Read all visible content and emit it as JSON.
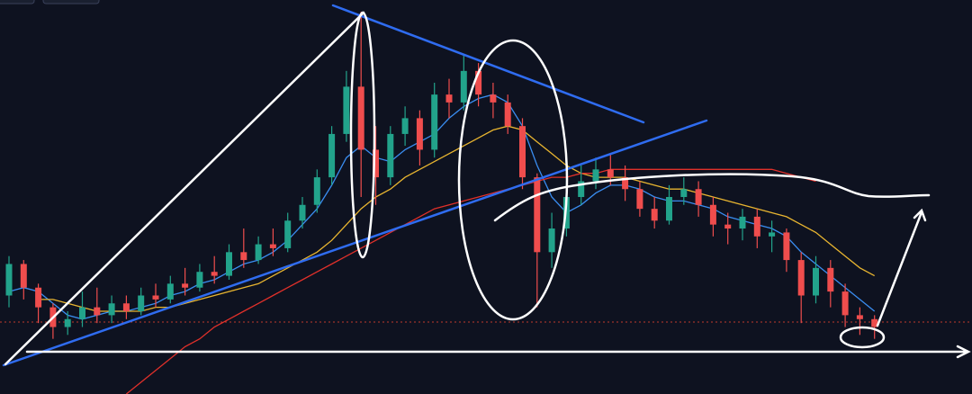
{
  "chart_data": {
    "type": "candlestick",
    "up_color": "#22a38b",
    "down_color": "#ef4d4d",
    "open": [
      25,
      33,
      27,
      22,
      17,
      19,
      22,
      20,
      23,
      21,
      25,
      24,
      28,
      27,
      31,
      30,
      36,
      34,
      38,
      37,
      44,
      48,
      55,
      66,
      78,
      62,
      55,
      66,
      70,
      62,
      76,
      74,
      82,
      76,
      74,
      68,
      55,
      36,
      42,
      50,
      54,
      57,
      55,
      52,
      47,
      44,
      50,
      52,
      48,
      43,
      42,
      45,
      40,
      41,
      34,
      25,
      32,
      26,
      20,
      19
    ],
    "high": [
      35,
      34,
      28,
      23,
      21,
      26,
      27,
      25,
      25,
      27,
      28,
      30,
      32,
      33,
      35,
      38,
      42,
      40,
      42,
      46,
      50,
      57,
      68,
      82,
      97,
      68,
      68,
      73,
      72,
      79,
      80,
      86,
      84,
      79,
      76,
      70,
      56,
      46,
      55,
      58,
      60,
      61,
      58,
      54,
      50,
      53,
      55,
      54,
      50,
      46,
      47,
      47,
      44,
      42,
      36,
      35,
      34,
      28,
      22,
      20
    ],
    "low": [
      22,
      24,
      18,
      14,
      15,
      17,
      18,
      18,
      19,
      20,
      22,
      23,
      25,
      26,
      28,
      29,
      32,
      33,
      35,
      36,
      42,
      46,
      53,
      64,
      50,
      48,
      53,
      63,
      58,
      60,
      70,
      72,
      73,
      70,
      66,
      52,
      22,
      32,
      40,
      48,
      52,
      53,
      49,
      45,
      42,
      43,
      48,
      45,
      40,
      38,
      39,
      37,
      36,
      31,
      18,
      23,
      22,
      17,
      15,
      14
    ],
    "close": [
      33,
      27,
      22,
      17,
      19,
      22,
      20,
      23,
      21,
      25,
      24,
      28,
      27,
      31,
      30,
      36,
      34,
      38,
      37,
      44,
      48,
      55,
      66,
      78,
      62,
      55,
      66,
      70,
      62,
      76,
      74,
      82,
      76,
      74,
      68,
      55,
      36,
      42,
      50,
      54,
      57,
      55,
      52,
      47,
      44,
      50,
      52,
      48,
      43,
      42,
      45,
      40,
      41,
      34,
      25,
      32,
      26,
      20,
      19,
      17
    ],
    "series": [
      {
        "color": "#3a8df0",
        "values": [
          26,
          27,
          26,
          23,
          20,
          19,
          20,
          21,
          21,
          22,
          23,
          25,
          26,
          28,
          29,
          31,
          33,
          34,
          36,
          39,
          43,
          47,
          53,
          60,
          63,
          60,
          59,
          62,
          64,
          66,
          70,
          73,
          75,
          76,
          74,
          68,
          58,
          50,
          46,
          48,
          51,
          53,
          53,
          52,
          50,
          49,
          49,
          48,
          47,
          45,
          44,
          43,
          42,
          40,
          36,
          33,
          30,
          27,
          24,
          21
        ]
      },
      {
        "color": "#e8b530",
        "values": [
          null,
          null,
          24,
          24,
          23,
          22,
          21,
          21,
          21,
          21,
          22,
          22,
          23,
          24,
          25,
          26,
          27,
          28,
          30,
          32,
          34,
          36,
          39,
          43,
          47,
          50,
          52,
          55,
          57,
          59,
          61,
          63,
          65,
          67,
          68,
          67,
          64,
          61,
          58,
          56,
          55,
          55,
          55,
          54,
          53,
          52,
          52,
          51,
          50,
          49,
          48,
          47,
          46,
          45,
          43,
          41,
          38,
          35,
          32,
          30
        ]
      },
      {
        "color": "#e0302a",
        "values": [
          null,
          null,
          null,
          null,
          null,
          null,
          null,
          null,
          0,
          3,
          6,
          9,
          12,
          14,
          17,
          19,
          21,
          23,
          25,
          27,
          29,
          31,
          33,
          35,
          37,
          39,
          41,
          43,
          45,
          47,
          48,
          49,
          50,
          51,
          52,
          53,
          54,
          55,
          55,
          56,
          56,
          57,
          57,
          57,
          57,
          57,
          57,
          57,
          57,
          57,
          57,
          57,
          57,
          56,
          55,
          54,
          null,
          null,
          null,
          null
        ]
      }
    ],
    "ylim": [
      0,
      100
    ]
  }
}
